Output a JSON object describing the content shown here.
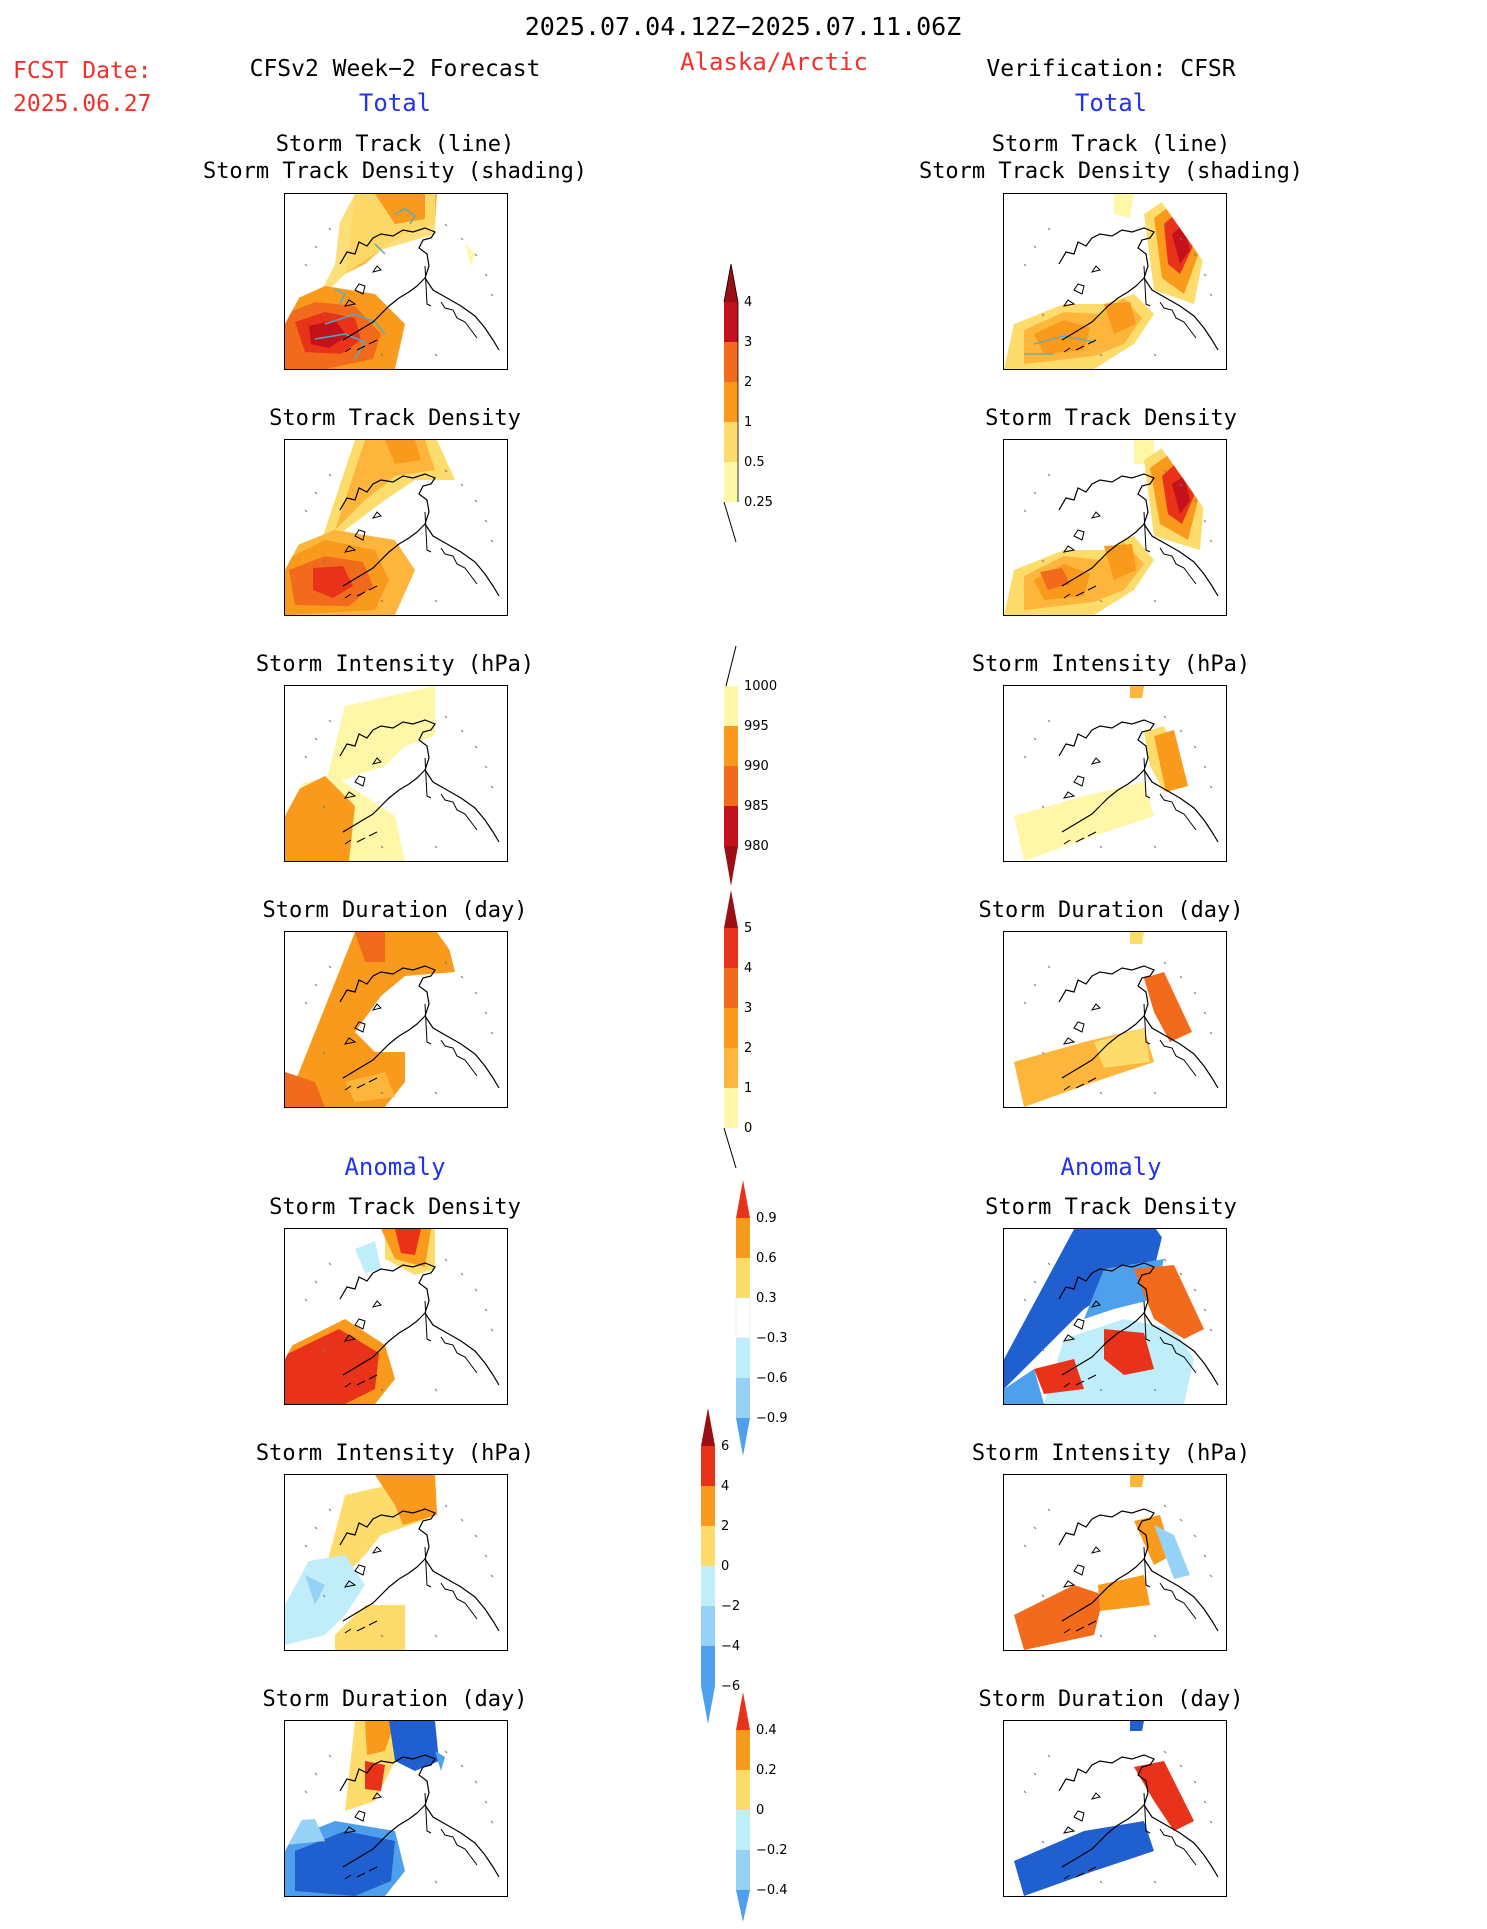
{
  "header": {
    "date_range": "2025.07.04.12Z−2025.07.11.06Z",
    "region": "Alaska/Arctic",
    "fcst_label": "FCST Date:",
    "fcst_date": "2025.06.27",
    "left_title": "CFSv2 Week−2 Forecast",
    "right_title": "Verification: CFSR",
    "left_section": "Total",
    "right_section": "Total",
    "left_anomaly": "Anomaly",
    "right_anomaly": "Anomaly"
  },
  "panels": {
    "track_title_1": "Storm Track (line)",
    "track_title_2": "Storm Track Density (shading)",
    "density": "Storm Track Density",
    "intensity": "Storm Intensity (hPa)",
    "duration": "Storm Duration (day)"
  },
  "colorbars": {
    "density_total": [
      "4",
      "3",
      "2",
      "1",
      "0.5",
      "0.25"
    ],
    "intensity_total": [
      "1000",
      "995",
      "990",
      "985",
      "980"
    ],
    "duration_total": [
      "5",
      "4",
      "3",
      "2",
      "1",
      "0"
    ],
    "density_anomaly": [
      "0.9",
      "0.6",
      "0.3",
      "−0.3",
      "−0.6",
      "−0.9"
    ],
    "intensity_anomaly": [
      "6",
      "4",
      "2",
      "0",
      "−2",
      "−4",
      "−6"
    ],
    "duration_anomaly": [
      "0.4",
      "0.2",
      "0",
      "−0.2",
      "−0.4"
    ]
  },
  "colors": {
    "yellow_light": "#fff7a8",
    "yellow": "#fddc6b",
    "orange_light": "#fdb53b",
    "orange": "#f99a1c",
    "orange_dark": "#f26a1b",
    "red": "#e8331a",
    "red_dark": "#c4111b",
    "maroon": "#9a0f13",
    "cyan_light": "#bfeefa",
    "blue_light": "#96d2f5",
    "blue": "#4ea0ec",
    "blue_dark": "#1f5fd0"
  }
}
